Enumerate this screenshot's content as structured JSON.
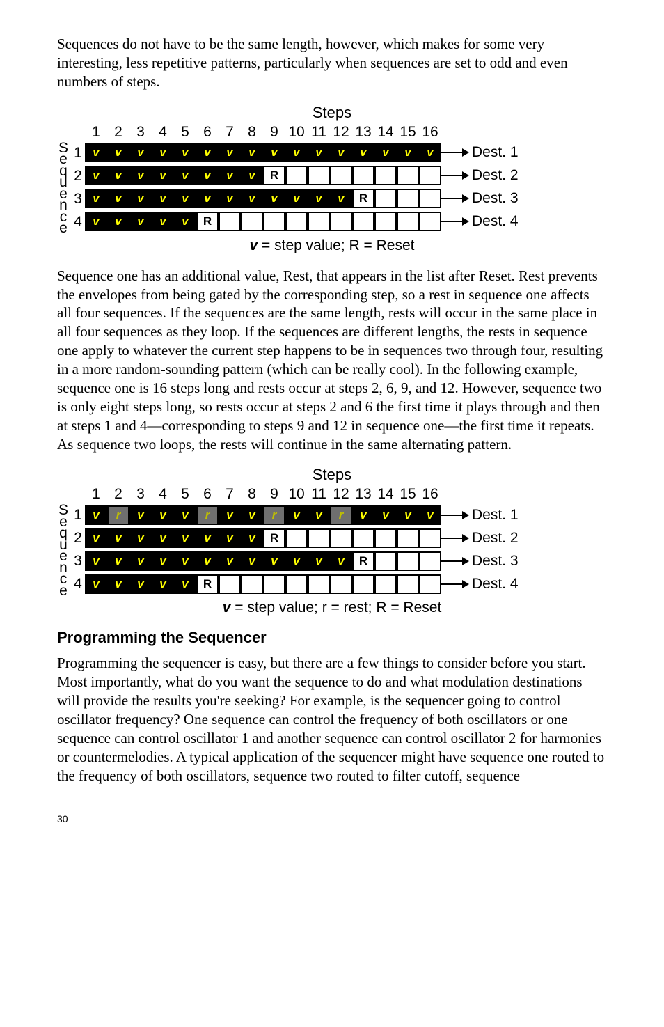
{
  "para1": "Sequences do not have to be the same length, however, which makes for some very interesting, less repetitive patterns, particularly when sequences are set to odd and even numbers of steps.",
  "diagram": {
    "steps_title": "Steps",
    "sequence_vlabel": [
      "S",
      "e",
      "q",
      "u",
      "e",
      "n",
      "c",
      "e"
    ],
    "col_headers": [
      "1",
      "2",
      "3",
      "4",
      "5",
      "6",
      "7",
      "8",
      "9",
      "10",
      "11",
      "12",
      "13",
      "14",
      "15",
      "16"
    ],
    "row_labels": [
      "1",
      "2",
      "3",
      "4"
    ],
    "dest_labels": [
      "Dest. 1",
      "Dest. 2",
      "Dest. 3",
      "Dest. 4"
    ],
    "cell_colors": {
      "v_bg": "#000000",
      "v_fg": "#ffff00",
      "R_bg": "#ffffff",
      "R_fg": "#000000",
      "r_bg": "#6f6f6f",
      "r_fg": "#c0c000",
      "empty_bg": "#ffffff",
      "border": "#000000"
    },
    "cell_font": {
      "family": "Arial",
      "size_pt": 13,
      "weight": "bold"
    },
    "label_font": {
      "family": "Arial",
      "size_pt": 16
    }
  },
  "diagram1": {
    "rows": [
      [
        "v",
        "v",
        "v",
        "v",
        "v",
        "v",
        "v",
        "v",
        "v",
        "v",
        "v",
        "v",
        "v",
        "v",
        "v",
        "v"
      ],
      [
        "v",
        "v",
        "v",
        "v",
        "v",
        "v",
        "v",
        "v",
        "R",
        "",
        "",
        "",
        "",
        "",
        "",
        ""
      ],
      [
        "v",
        "v",
        "v",
        "v",
        "v",
        "v",
        "v",
        "v",
        "v",
        "v",
        "v",
        "v",
        "R",
        "",
        "",
        ""
      ],
      [
        "v",
        "v",
        "v",
        "v",
        "v",
        "R",
        "",
        "",
        "",
        "",
        "",
        "",
        "",
        "",
        "",
        ""
      ]
    ],
    "caption_prefix": "",
    "caption_bold_v": "v",
    "caption_rest": " = step value; R = Reset"
  },
  "para2": "Sequence one has an additional value, Rest, that appears in the list after Reset. Rest prevents the envelopes from being gated by the corresponding step, so a rest in sequence one affects all four sequences. If the sequences are the same length, rests will occur in the same place in all four sequences as they loop. If the sequences are different lengths, the rests in sequence one apply to whatever the current step happens to be in sequences two through four, resulting in a more random-sounding pattern (which can be really cool). In the following example, sequence one is 16 steps long and rests occur at steps 2, 6, 9, and 12. However, sequence two is only eight steps long, so rests occur at steps 2 and 6 the first time it plays through and then at steps 1 and 4—corresponding to steps 9 and 12 in sequence one—the first time it repeats. As sequence two loops, the rests will continue in the same alternating pattern.",
  "diagram2": {
    "rows": [
      [
        "v",
        "r",
        "v",
        "v",
        "v",
        "r",
        "v",
        "v",
        "r",
        "v",
        "v",
        "r",
        "v",
        "v",
        "v",
        "v"
      ],
      [
        "v",
        "v",
        "v",
        "v",
        "v",
        "v",
        "v",
        "v",
        "R",
        "",
        "",
        "",
        "",
        "",
        "",
        ""
      ],
      [
        "v",
        "v",
        "v",
        "v",
        "v",
        "v",
        "v",
        "v",
        "v",
        "v",
        "v",
        "v",
        "R",
        "",
        "",
        ""
      ],
      [
        "v",
        "v",
        "v",
        "v",
        "v",
        "R",
        "",
        "",
        "",
        "",
        "",
        "",
        "",
        "",
        "",
        ""
      ]
    ],
    "caption_bold_v": "v",
    "caption_rest": " = step value; r = rest; R = Reset"
  },
  "heading": "Programming the Sequencer",
  "para3": "Programming the sequencer is easy, but there are a few things to consider before you start. Most importantly, what do you want the sequence to do and what modulation destinations will provide the results you're seeking? For example, is the sequencer going to control oscillator frequency? One sequence can control the frequency of both oscillators or one sequence can control oscillator 1 and another sequence can control oscillator 2 for harmonies or countermelodies. A typical application of the sequencer might have sequence one routed to the frequency of both oscillators, sequence two routed to filter cutoff, sequence",
  "page_number": "30"
}
